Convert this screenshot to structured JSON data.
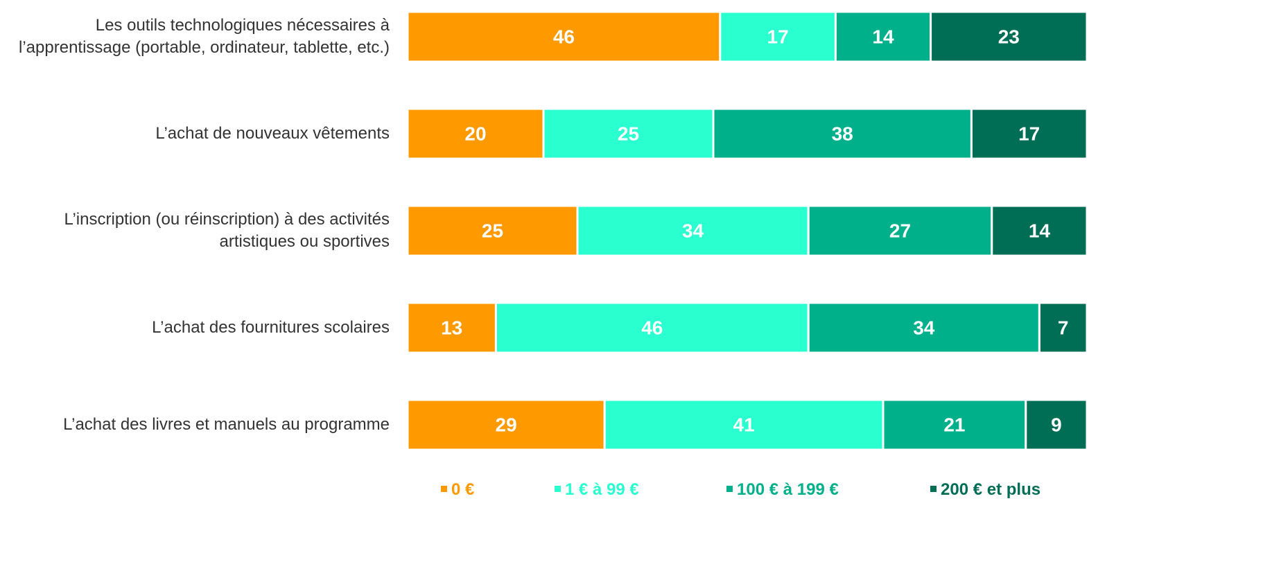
{
  "chart_data": {
    "type": "stacked-bar-horizontal",
    "categories": [
      "Les outils technologiques nécessaires à l’apprentissage (portable, ordinateur, tablette, etc.)",
      "L’achat de nouveaux vêtements",
      "L’inscription (ou réinscription) à des activités artistiques ou sportives",
      "L’achat des fournitures scolaires",
      "L’achat des livres et manuels au programme"
    ],
    "series": [
      {
        "name": "0 €",
        "color": "#ff9900",
        "values": [
          46,
          20,
          25,
          13,
          29
        ]
      },
      {
        "name": "1 € à 99 €",
        "color": "#2affd0",
        "values": [
          17,
          25,
          34,
          46,
          41
        ]
      },
      {
        "name": "100 € à 199 €",
        "color": "#00b08a",
        "values": [
          14,
          38,
          27,
          34,
          21
        ]
      },
      {
        "name": "200 € et plus",
        "color": "#006e55",
        "values": [
          23,
          17,
          14,
          7,
          9
        ]
      }
    ],
    "xlim": [
      0,
      100
    ],
    "legend": "bottom"
  }
}
